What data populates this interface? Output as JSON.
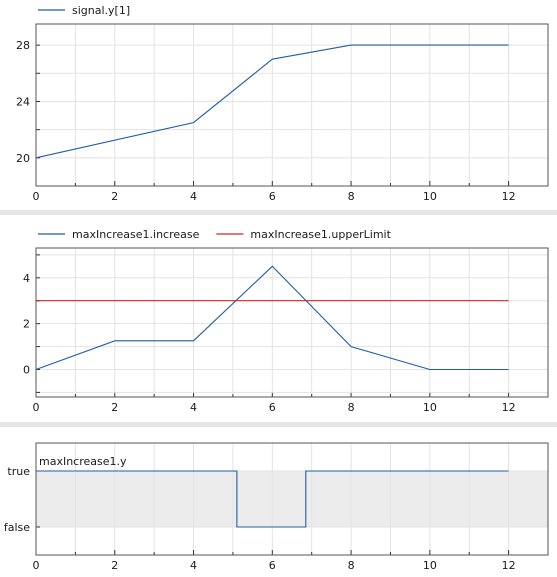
{
  "chart_data": [
    {
      "type": "line",
      "legend_position": "top-left",
      "grid": true,
      "xlim": [
        0,
        13
      ],
      "ylim": [
        18,
        29.5
      ],
      "x_ticks": [
        0,
        2,
        4,
        6,
        8,
        10,
        12
      ],
      "y_ticks": [
        20,
        24,
        28
      ],
      "series": [
        {
          "name": "signal.y[1]",
          "color": "#1f5fa5",
          "x": [
            0,
            4,
            6,
            8,
            12
          ],
          "y": [
            20,
            22.5,
            27,
            28,
            28
          ]
        }
      ]
    },
    {
      "type": "line",
      "legend_position": "top-left",
      "grid": true,
      "xlim": [
        0,
        13
      ],
      "ylim": [
        -1.2,
        5.3
      ],
      "x_ticks": [
        0,
        2,
        4,
        6,
        8,
        10,
        12
      ],
      "y_ticks": [
        0,
        2,
        4
      ],
      "series": [
        {
          "name": "maxIncrease1.increase",
          "color": "#1f5fa5",
          "x": [
            0,
            2,
            4,
            6,
            8,
            10,
            12
          ],
          "y": [
            0,
            1.25,
            1.25,
            4.5,
            1,
            0,
            0
          ]
        },
        {
          "name": "maxIncrease1.upperLimit",
          "color": "#cc2a2a",
          "x": [
            0,
            12
          ],
          "y": [
            3,
            3
          ]
        }
      ]
    },
    {
      "type": "line",
      "grid": true,
      "xlim": [
        0,
        13
      ],
      "ylim": [
        -0.5,
        1.5
      ],
      "x_ticks": [
        0,
        2,
        4,
        6,
        8,
        10,
        12
      ],
      "y_tick_labels": [
        "false",
        "true"
      ],
      "series_label": "maxIncrease1.y",
      "band_color": "#ececec",
      "series": [
        {
          "name": "maxIncrease1.y",
          "color": "#1f5fa5",
          "x": [
            0,
            5.1,
            5.1,
            6.85,
            6.85,
            12
          ],
          "y": [
            1,
            1,
            0,
            0,
            1,
            1
          ]
        }
      ]
    }
  ]
}
